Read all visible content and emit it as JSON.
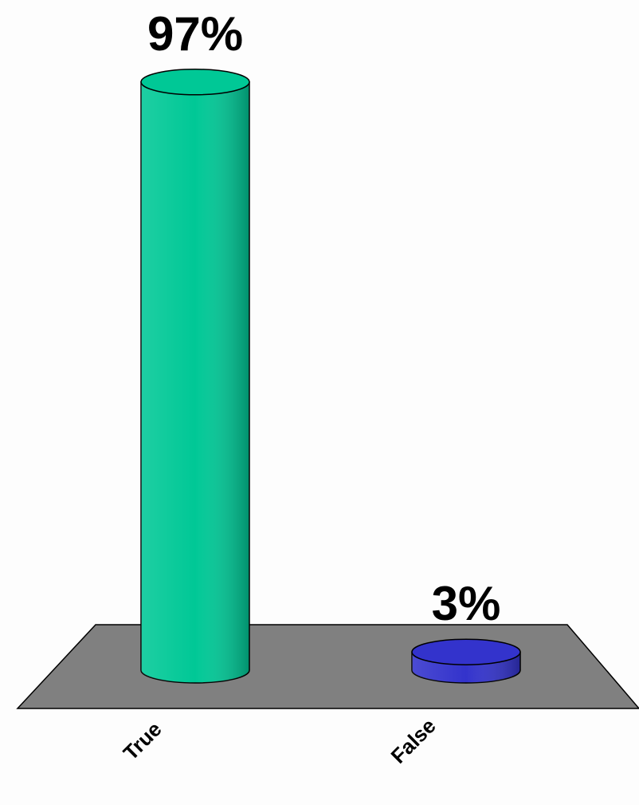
{
  "chart_data": {
    "type": "bar",
    "categories": [
      "True",
      "False"
    ],
    "values": [
      97,
      3
    ],
    "value_labels": [
      "97%",
      "3%"
    ],
    "colors": [
      "#00c896",
      "#3333cc"
    ]
  }
}
